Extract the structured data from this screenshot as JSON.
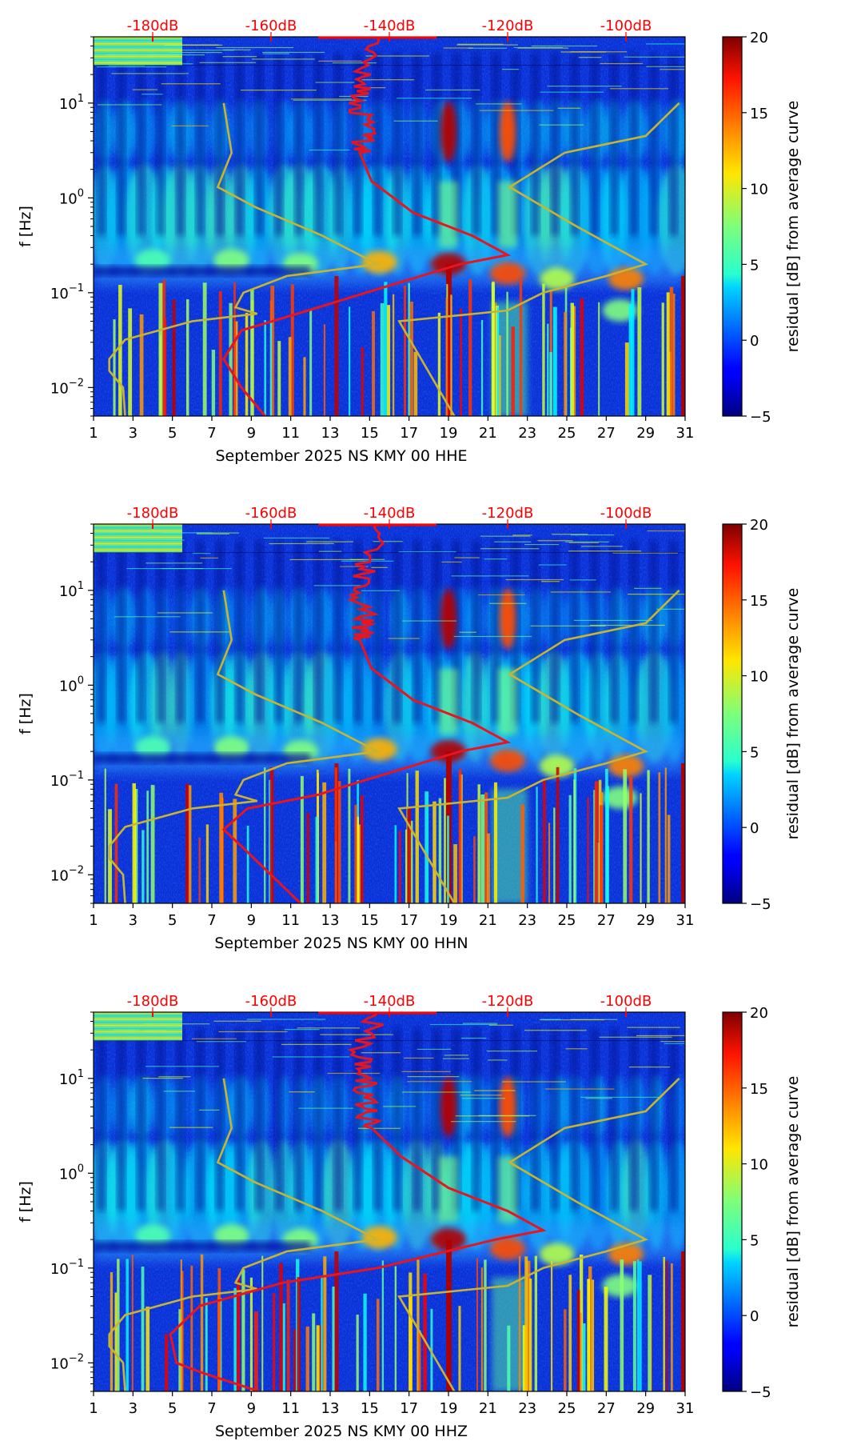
{
  "chart_data": [
    {
      "type": "heatmap",
      "xlabel": "September 2025 NS KMY 00 HHE",
      "ylabel": "f [Hz]",
      "colorbar_label": "residual [dB] from average curve",
      "x_ticks": [
        "1",
        "3",
        "5",
        "7",
        "9",
        "11",
        "13",
        "15",
        "17",
        "19",
        "21",
        "23",
        "25",
        "27",
        "29",
        "31"
      ],
      "y_ticks": [
        {
          "value": 0.01,
          "base": "10",
          "exp": "−2"
        },
        {
          "value": 0.1,
          "base": "10",
          "exp": "−1"
        },
        {
          "value": 1,
          "base": "10",
          "exp": "0"
        },
        {
          "value": 10,
          "base": "10",
          "exp": "1"
        }
      ],
      "top_ticks": [
        {
          "db": -180,
          "label": "-180dB"
        },
        {
          "db": -160,
          "label": "-160dB"
        },
        {
          "db": -140,
          "label": "-140dB"
        },
        {
          "db": -120,
          "label": "-120dB"
        },
        {
          "db": -100,
          "label": "-100dB"
        }
      ],
      "colorbar_ticks": [
        "20",
        "15",
        "10",
        "5",
        "0",
        "−5"
      ],
      "xlim": [
        1,
        31
      ],
      "ylim": [
        0.005,
        50
      ],
      "y_scale": "log",
      "top_xlim": [
        -190,
        -90
      ],
      "clim": [
        -5,
        20
      ],
      "average_psd_db": [
        [
          0.005,
          -161
        ],
        [
          0.01,
          -165
        ],
        [
          0.02,
          -168
        ],
        [
          0.04,
          -165
        ],
        [
          0.07,
          -152
        ],
        [
          0.1,
          -144
        ],
        [
          0.2,
          -128
        ],
        [
          0.25,
          -120
        ],
        [
          0.4,
          -126
        ],
        [
          0.7,
          -136
        ],
        [
          1.5,
          -143
        ],
        [
          3,
          -145
        ],
        [
          5,
          -144
        ],
        [
          10,
          -145
        ],
        [
          20,
          -144
        ],
        [
          50,
          -142
        ]
      ],
      "noise_model_curve_days": [
        [
          0.005,
          2.6
        ],
        [
          0.01,
          2.5
        ],
        [
          0.015,
          1.8
        ],
        [
          0.02,
          1.8
        ],
        [
          0.032,
          2.6
        ],
        [
          0.05,
          6
        ],
        [
          0.06,
          9.3
        ],
        [
          0.07,
          8.2
        ],
        [
          0.1,
          8.6
        ],
        [
          0.15,
          10.8
        ],
        [
          0.2,
          15.4
        ],
        [
          0.4,
          12.6
        ],
        [
          0.8,
          9.2
        ],
        [
          1.3,
          7.3
        ],
        [
          3,
          8
        ],
        [
          10,
          7.6
        ]
      ],
      "noise_model_curve_right_days": [
        [
          0.005,
          19.3
        ],
        [
          0.05,
          16.5
        ],
        [
          0.065,
          22
        ],
        [
          0.1,
          23.8
        ],
        [
          0.15,
          27
        ],
        [
          0.2,
          29
        ],
        [
          0.5,
          25.5
        ],
        [
          1.3,
          22.1
        ],
        [
          3,
          24.9
        ],
        [
          4.5,
          29
        ],
        [
          10,
          30.7
        ]
      ]
    },
    {
      "type": "heatmap",
      "xlabel": "September 2025 NS KMY 00 HHN",
      "ylabel": "f [Hz]",
      "colorbar_label": "residual [dB] from average curve",
      "x_ticks": [
        "1",
        "3",
        "5",
        "7",
        "9",
        "11",
        "13",
        "15",
        "17",
        "19",
        "21",
        "23",
        "25",
        "27",
        "29",
        "31"
      ],
      "y_ticks": [
        {
          "value": 0.01,
          "base": "10",
          "exp": "−2"
        },
        {
          "value": 0.1,
          "base": "10",
          "exp": "−1"
        },
        {
          "value": 1,
          "base": "10",
          "exp": "0"
        },
        {
          "value": 10,
          "base": "10",
          "exp": "1"
        }
      ],
      "top_ticks": [
        {
          "db": -180,
          "label": "-180dB"
        },
        {
          "db": -160,
          "label": "-160dB"
        },
        {
          "db": -140,
          "label": "-140dB"
        },
        {
          "db": -120,
          "label": "-120dB"
        },
        {
          "db": -100,
          "label": "-100dB"
        }
      ],
      "colorbar_ticks": [
        "20",
        "15",
        "10",
        "5",
        "0",
        "−5"
      ],
      "xlim": [
        1,
        31
      ],
      "ylim": [
        0.005,
        50
      ],
      "y_scale": "log",
      "top_xlim": [
        -190,
        -90
      ],
      "clim": [
        -5,
        20
      ],
      "average_psd_db": [
        [
          0.005,
          -155
        ],
        [
          0.01,
          -160
        ],
        [
          0.02,
          -165
        ],
        [
          0.03,
          -168
        ],
        [
          0.05,
          -164
        ],
        [
          0.07,
          -152
        ],
        [
          0.1,
          -144
        ],
        [
          0.2,
          -128
        ],
        [
          0.25,
          -120
        ],
        [
          0.4,
          -126
        ],
        [
          0.7,
          -136
        ],
        [
          1.5,
          -143
        ],
        [
          3,
          -145
        ],
        [
          5,
          -144
        ],
        [
          10,
          -145
        ],
        [
          20,
          -144
        ],
        [
          50,
          -142
        ]
      ],
      "noise_model_curve_days": [
        [
          0.005,
          2.6
        ],
        [
          0.01,
          2.5
        ],
        [
          0.015,
          1.8
        ],
        [
          0.02,
          1.8
        ],
        [
          0.032,
          2.6
        ],
        [
          0.05,
          6
        ],
        [
          0.06,
          9.3
        ],
        [
          0.07,
          8.2
        ],
        [
          0.1,
          8.6
        ],
        [
          0.15,
          10.8
        ],
        [
          0.2,
          15.4
        ],
        [
          0.4,
          12.6
        ],
        [
          0.8,
          9.2
        ],
        [
          1.3,
          7.3
        ],
        [
          3,
          8
        ],
        [
          10,
          7.6
        ]
      ],
      "noise_model_curve_right_days": [
        [
          0.005,
          19.3
        ],
        [
          0.05,
          16.5
        ],
        [
          0.065,
          22
        ],
        [
          0.1,
          23.8
        ],
        [
          0.15,
          27
        ],
        [
          0.2,
          29
        ],
        [
          0.5,
          25.5
        ],
        [
          1.3,
          22.1
        ],
        [
          3,
          24.9
        ],
        [
          4.5,
          29
        ],
        [
          10,
          30.7
        ]
      ]
    },
    {
      "type": "heatmap",
      "xlabel": "September 2025 NS KMY 00 HHZ",
      "ylabel": "f [Hz]",
      "colorbar_label": "residual [dB] from average curve",
      "x_ticks": [
        "1",
        "3",
        "5",
        "7",
        "9",
        "11",
        "13",
        "15",
        "17",
        "19",
        "21",
        "23",
        "25",
        "27",
        "29",
        "31"
      ],
      "y_ticks": [
        {
          "value": 0.01,
          "base": "10",
          "exp": "−2"
        },
        {
          "value": 0.1,
          "base": "10",
          "exp": "−1"
        },
        {
          "value": 1,
          "base": "10",
          "exp": "0"
        },
        {
          "value": 10,
          "base": "10",
          "exp": "1"
        }
      ],
      "top_ticks": [
        {
          "db": -180,
          "label": "-180dB"
        },
        {
          "db": -160,
          "label": "-160dB"
        },
        {
          "db": -140,
          "label": "-140dB"
        },
        {
          "db": -120,
          "label": "-120dB"
        },
        {
          "db": -100,
          "label": "-100dB"
        }
      ],
      "colorbar_ticks": [
        "20",
        "15",
        "10",
        "5",
        "0",
        "−5"
      ],
      "xlim": [
        1,
        31
      ],
      "ylim": [
        0.005,
        50
      ],
      "y_scale": "log",
      "top_xlim": [
        -190,
        -90
      ],
      "clim": [
        -5,
        20
      ],
      "average_psd_db": [
        [
          0.005,
          -162
        ],
        [
          0.008,
          -172
        ],
        [
          0.01,
          -176
        ],
        [
          0.02,
          -177
        ],
        [
          0.04,
          -172
        ],
        [
          0.07,
          -158
        ],
        [
          0.1,
          -142
        ],
        [
          0.2,
          -122
        ],
        [
          0.25,
          -114
        ],
        [
          0.4,
          -120
        ],
        [
          0.7,
          -130
        ],
        [
          1.5,
          -138
        ],
        [
          3,
          -143
        ],
        [
          5,
          -144
        ],
        [
          10,
          -144
        ],
        [
          20,
          -145
        ],
        [
          50,
          -142
        ]
      ],
      "noise_model_curve_days": [
        [
          0.005,
          2.6
        ],
        [
          0.01,
          2.5
        ],
        [
          0.015,
          1.8
        ],
        [
          0.02,
          1.8
        ],
        [
          0.032,
          2.6
        ],
        [
          0.05,
          6
        ],
        [
          0.06,
          9.3
        ],
        [
          0.07,
          8.2
        ],
        [
          0.1,
          8.6
        ],
        [
          0.15,
          10.8
        ],
        [
          0.2,
          15.4
        ],
        [
          0.4,
          12.6
        ],
        [
          0.8,
          9.2
        ],
        [
          1.3,
          7.3
        ],
        [
          3,
          8
        ],
        [
          10,
          7.6
        ]
      ],
      "noise_model_curve_right_days": [
        [
          0.005,
          19.3
        ],
        [
          0.05,
          16.5
        ],
        [
          0.065,
          22
        ],
        [
          0.1,
          23.8
        ],
        [
          0.15,
          27
        ],
        [
          0.2,
          29
        ],
        [
          0.5,
          25.5
        ],
        [
          1.3,
          22.1
        ],
        [
          3,
          24.9
        ],
        [
          4.5,
          29
        ],
        [
          10,
          30.7
        ]
      ]
    }
  ],
  "colors": {
    "average_curve": "#e8141e",
    "noise_model": "#c8b432",
    "top_axis_text": "#ff0000"
  },
  "colormap": "jet"
}
